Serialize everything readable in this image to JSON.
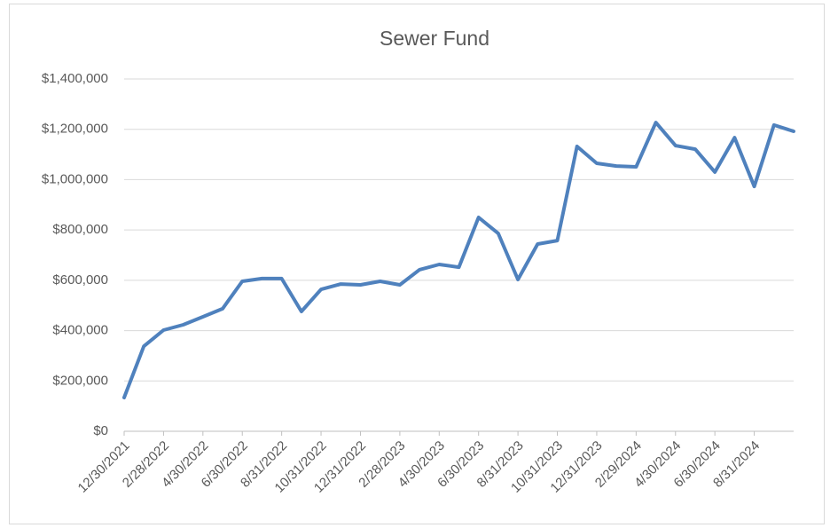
{
  "chart_data": {
    "type": "line",
    "title": "Sewer Fund",
    "categories": [
      "12/30/2021",
      null,
      "2/28/2022",
      null,
      "4/30/2022",
      null,
      "6/30/2022",
      null,
      "8/31/2022",
      null,
      "10/31/2022",
      null,
      "12/31/2022",
      null,
      "2/28/2023",
      null,
      "4/30/2023",
      null,
      "6/30/2023",
      null,
      "8/31/2023",
      null,
      "10/31/2023",
      null,
      "12/31/2023",
      null,
      "2/29/2024",
      null,
      "4/30/2024",
      null,
      "6/30/2024",
      null,
      "8/31/2024",
      null,
      null
    ],
    "series": [
      {
        "name": "Sewer Fund",
        "color": "#4f81bd",
        "values": [
          134000,
          338000,
          402000,
          423000,
          455000,
          487000,
          596000,
          607000,
          607000,
          476000,
          564000,
          585000,
          582000,
          596000,
          582000,
          642000,
          663000,
          652000,
          850000,
          786000,
          603000,
          744000,
          758000,
          1132000,
          1065000,
          1054000,
          1051000,
          1227000,
          1135000,
          1121000,
          1030000,
          1167000,
          973000,
          1217000,
          1192000
        ]
      }
    ],
    "ylim": [
      0,
      1400000
    ],
    "yticks": [
      {
        "value": 0,
        "label": "$0"
      },
      {
        "value": 200000,
        "label": "$200,000"
      },
      {
        "value": 400000,
        "label": "$400,000"
      },
      {
        "value": 600000,
        "label": "$600,000"
      },
      {
        "value": 800000,
        "label": "$800,000"
      },
      {
        "value": 1000000,
        "label": "$1,000,000"
      },
      {
        "value": 1200000,
        "label": "$1,200,000"
      },
      {
        "value": 1400000,
        "label": "$1,400,000"
      }
    ],
    "grid": true
  }
}
